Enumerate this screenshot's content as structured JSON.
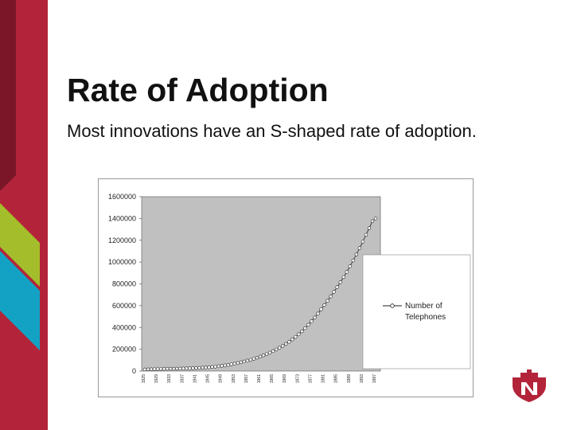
{
  "slide": {
    "title": "Rate of Adoption",
    "subtitle": "Most innovations have an S-shaped rate of adoption."
  },
  "colors": {
    "brand_red": "#b3243a",
    "dark_red": "#7a1628",
    "lime": "#a4bd2a",
    "teal": "#13a2c4",
    "plot_bg": "#c0c0c0"
  },
  "chart_data": {
    "type": "line",
    "ylim": [
      0,
      1600000
    ],
    "y_ticks": [
      "1600000",
      "1400000",
      "1200000",
      "1000000",
      "800000",
      "600000",
      "400000",
      "200000",
      "0"
    ],
    "x_tick_labels": [
      "1925",
      "1929",
      "1933",
      "1937",
      "1941",
      "1945",
      "1949",
      "1953",
      "1957",
      "1961",
      "1965",
      "1969",
      "1973",
      "1977",
      "1981",
      "1985",
      "1989",
      "1993",
      "1997"
    ],
    "series": [
      {
        "name": "Number of Telephones",
        "x": [
          1925,
          1926,
          1927,
          1928,
          1929,
          1930,
          1931,
          1932,
          1933,
          1934,
          1935,
          1936,
          1937,
          1938,
          1939,
          1940,
          1941,
          1942,
          1943,
          1944,
          1945,
          1946,
          1947,
          1948,
          1949,
          1950,
          1951,
          1952,
          1953,
          1954,
          1955,
          1956,
          1957,
          1958,
          1959,
          1960,
          1961,
          1962,
          1963,
          1964,
          1965,
          1966,
          1967,
          1968,
          1969,
          1970,
          1971,
          1972,
          1973,
          1974,
          1975,
          1976,
          1977,
          1978,
          1979,
          1980,
          1981,
          1982,
          1983,
          1984,
          1985,
          1986,
          1987,
          1988,
          1989,
          1990,
          1991,
          1992,
          1993,
          1994,
          1995,
          1996,
          1997
        ],
        "values": [
          15000,
          16000,
          17000,
          18000,
          19000,
          20000,
          20500,
          21000,
          21500,
          22000,
          22500,
          23000,
          24000,
          25000,
          26000,
          27000,
          28000,
          29500,
          31000,
          33000,
          35000,
          38000,
          41000,
          44000,
          48000,
          52000,
          57000,
          62000,
          68000,
          74000,
          81000,
          88000,
          96000,
          104000,
          113000,
          123000,
          133000,
          144000,
          156000,
          169000,
          183000,
          198000,
          214000,
          231000,
          249000,
          268000,
          290000,
          313000,
          338000,
          365000,
          394000,
          425000,
          457000,
          491000,
          528000,
          567000,
          606000,
          645000,
          685000,
          727000,
          770000,
          815000,
          862000,
          910000,
          962000,
          1015000,
          1070000,
          1128000,
          1188000,
          1250000,
          1312000,
          1375000,
          1400000
        ]
      }
    ],
    "legend_position": "right",
    "grid": false
  }
}
